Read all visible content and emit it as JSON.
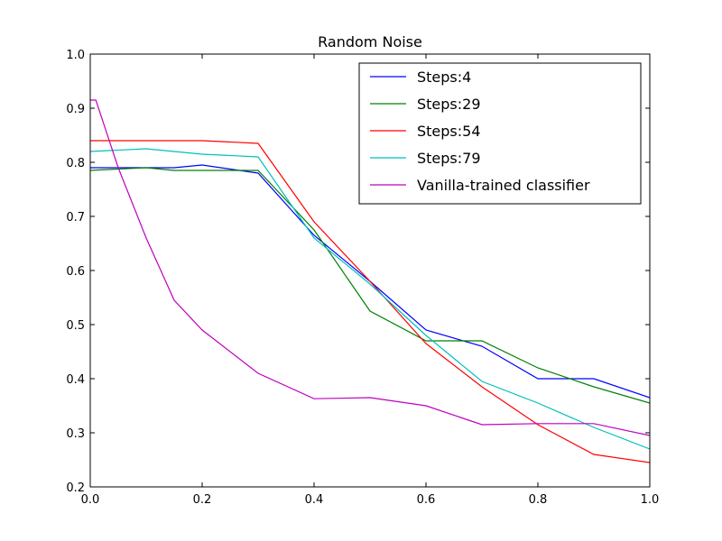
{
  "chart_data": {
    "type": "line",
    "title": "Random Noise",
    "xlabel": "",
    "ylabel": "",
    "xlim": [
      0.0,
      1.0
    ],
    "ylim": [
      0.2,
      1.0
    ],
    "xticks": [
      "0.0",
      "0.2",
      "0.4",
      "0.6",
      "0.8",
      "1.0"
    ],
    "yticks": [
      "0.2",
      "0.3",
      "0.4",
      "0.5",
      "0.6",
      "0.7",
      "0.8",
      "0.9",
      "1.0"
    ],
    "grid": false,
    "legend_position": "top-right",
    "series": [
      {
        "name": "Steps:4",
        "color": "#0000ff",
        "x": [
          0.0,
          0.1,
          0.15,
          0.2,
          0.3,
          0.4,
          0.5,
          0.6,
          0.7,
          0.8,
          0.9,
          1.0
        ],
        "y": [
          0.79,
          0.79,
          0.79,
          0.795,
          0.78,
          0.665,
          0.58,
          0.49,
          0.46,
          0.4,
          0.4,
          0.365
        ]
      },
      {
        "name": "Steps:29",
        "color": "#008000",
        "x": [
          0.0,
          0.1,
          0.15,
          0.2,
          0.3,
          0.4,
          0.5,
          0.6,
          0.7,
          0.8,
          0.9,
          1.0
        ],
        "y": [
          0.785,
          0.79,
          0.785,
          0.785,
          0.785,
          0.675,
          0.525,
          0.47,
          0.47,
          0.42,
          0.385,
          0.355
        ]
      },
      {
        "name": "Steps:54",
        "color": "#ff0000",
        "x": [
          0.0,
          0.1,
          0.2,
          0.3,
          0.4,
          0.5,
          0.6,
          0.7,
          0.8,
          0.9,
          1.0
        ],
        "y": [
          0.84,
          0.84,
          0.84,
          0.835,
          0.69,
          0.58,
          0.465,
          0.385,
          0.315,
          0.26,
          0.245
        ]
      },
      {
        "name": "Steps:79",
        "color": "#00bfbf",
        "x": [
          0.0,
          0.1,
          0.2,
          0.3,
          0.4,
          0.5,
          0.6,
          0.7,
          0.8,
          0.9,
          1.0
        ],
        "y": [
          0.82,
          0.825,
          0.815,
          0.81,
          0.66,
          0.575,
          0.48,
          0.395,
          0.355,
          0.31,
          0.27
        ]
      },
      {
        "name": "Vanilla-trained classifier",
        "color": "#bf00bf",
        "x": [
          0.0,
          0.01,
          0.05,
          0.1,
          0.15,
          0.2,
          0.3,
          0.4,
          0.5,
          0.6,
          0.7,
          0.8,
          0.9,
          1.0
        ],
        "y": [
          0.915,
          0.915,
          0.79,
          0.66,
          0.545,
          0.49,
          0.41,
          0.363,
          0.365,
          0.35,
          0.315,
          0.317,
          0.317,
          0.295
        ]
      }
    ]
  }
}
